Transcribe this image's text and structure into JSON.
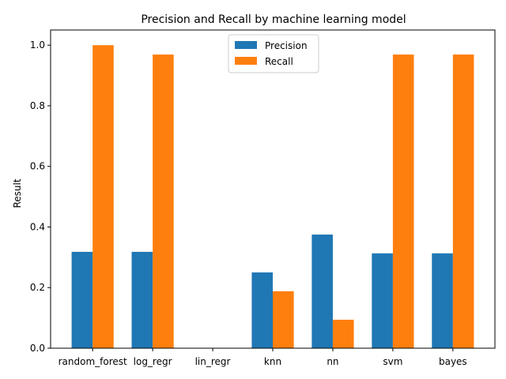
{
  "chart_data": {
    "type": "bar",
    "title": "Precision and Recall by machine learning model",
    "xlabel": "",
    "ylabel": "Result",
    "categories": [
      "random_forest",
      "log_regr",
      "lin_regr",
      "knn",
      "nn",
      "svm",
      "bayes"
    ],
    "series": [
      {
        "name": "Precision",
        "color": "#1f77b4",
        "values": [
          0.318,
          0.318,
          0.0,
          0.25,
          0.375,
          0.313,
          0.313
        ]
      },
      {
        "name": "Recall",
        "color": "#ff7f0e",
        "values": [
          1.0,
          0.969,
          0.0,
          0.188,
          0.094,
          0.969,
          0.969
        ]
      }
    ],
    "ylim": [
      0,
      1.05
    ],
    "yticks": [
      "0.0",
      "0.2",
      "0.4",
      "0.6",
      "0.8",
      "1.0"
    ],
    "grid": false,
    "legend_position": "top-center"
  }
}
